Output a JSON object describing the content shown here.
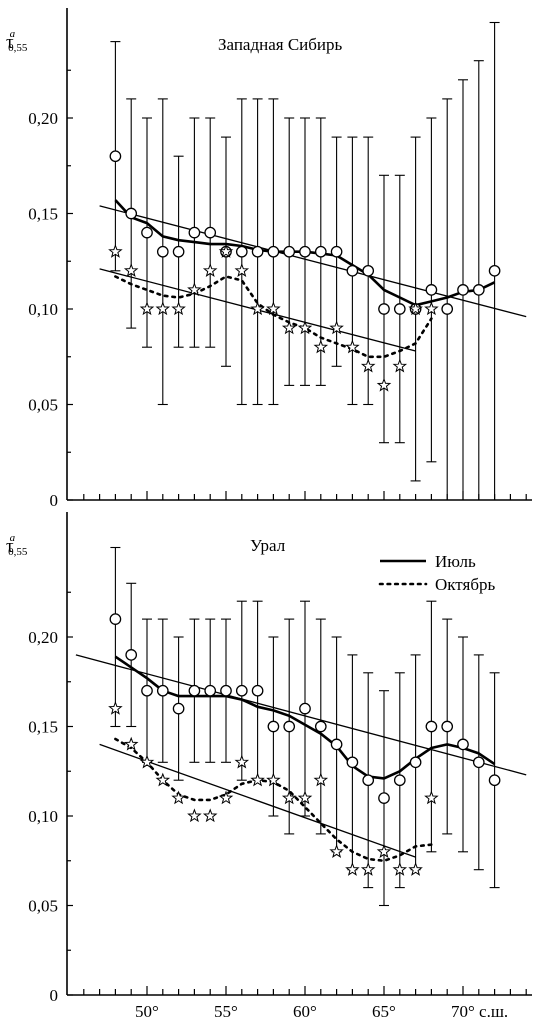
{
  "chart_data": [
    {
      "type": "line",
      "title": "Западная Сибирь",
      "ylabel_base": "τ",
      "ylabel_sup": "a",
      "ylabel_sub": "0,55",
      "ylim": [
        0,
        0.25
      ],
      "yticks": [
        {
          "value": 0,
          "label": "0"
        },
        {
          "value": 0.05,
          "label": "0,05"
        },
        {
          "value": 0.1,
          "label": "0,10"
        },
        {
          "value": 0.15,
          "label": "0,15"
        },
        {
          "value": 0.2,
          "label": "0,20"
        }
      ],
      "xlim": [
        45.5,
        75
      ],
      "series": [
        {
          "name": "Июль",
          "marker": "circle",
          "points": [
            {
              "x": 48,
              "y": 0.18,
              "lo": 0.12,
              "hi": 0.24
            },
            {
              "x": 49,
              "y": 0.15,
              "lo": 0.09,
              "hi": 0.21
            },
            {
              "x": 50,
              "y": 0.14,
              "lo": 0.08,
              "hi": 0.2
            },
            {
              "x": 51,
              "y": 0.13,
              "lo": 0.05,
              "hi": 0.21
            },
            {
              "x": 52,
              "y": 0.13,
              "lo": 0.08,
              "hi": 0.18
            },
            {
              "x": 53,
              "y": 0.14,
              "lo": 0.08,
              "hi": 0.2
            },
            {
              "x": 54,
              "y": 0.14,
              "lo": 0.08,
              "hi": 0.2
            },
            {
              "x": 55,
              "y": 0.13,
              "lo": 0.07,
              "hi": 0.19
            },
            {
              "x": 56,
              "y": 0.13,
              "lo": 0.05,
              "hi": 0.21
            },
            {
              "x": 57,
              "y": 0.13,
              "lo": 0.05,
              "hi": 0.21
            },
            {
              "x": 58,
              "y": 0.13,
              "lo": 0.05,
              "hi": 0.21
            },
            {
              "x": 59,
              "y": 0.13,
              "lo": 0.06,
              "hi": 0.2
            },
            {
              "x": 60,
              "y": 0.13,
              "lo": 0.06,
              "hi": 0.2
            },
            {
              "x": 61,
              "y": 0.13,
              "lo": 0.06,
              "hi": 0.2
            },
            {
              "x": 62,
              "y": 0.13,
              "lo": 0.07,
              "hi": 0.19
            },
            {
              "x": 63,
              "y": 0.12,
              "lo": 0.05,
              "hi": 0.19
            },
            {
              "x": 64,
              "y": 0.12,
              "lo": 0.05,
              "hi": 0.19
            },
            {
              "x": 65,
              "y": 0.1,
              "lo": 0.03,
              "hi": 0.17
            },
            {
              "x": 66,
              "y": 0.1,
              "lo": 0.03,
              "hi": 0.17
            },
            {
              "x": 67,
              "y": 0.1,
              "lo": 0.01,
              "hi": 0.19
            },
            {
              "x": 68,
              "y": 0.11,
              "lo": 0.02,
              "hi": 0.2
            },
            {
              "x": 69,
              "y": 0.1,
              "lo": 0.0,
              "hi": 0.21
            },
            {
              "x": 70,
              "y": 0.11,
              "lo": 0.0,
              "hi": 0.22
            },
            {
              "x": 71,
              "y": 0.11,
              "lo": 0.0,
              "hi": 0.23
            },
            {
              "x": 72,
              "y": 0.12,
              "lo": 0.0,
              "hi": 0.25
            }
          ],
          "smooth": [
            [
              48,
              0.157
            ],
            [
              49,
              0.148
            ],
            [
              50,
              0.145
            ],
            [
              51,
              0.138
            ],
            [
              52,
              0.136
            ],
            [
              53,
              0.135
            ],
            [
              54,
              0.134
            ],
            [
              55,
              0.134
            ],
            [
              56,
              0.133
            ],
            [
              57,
              0.131
            ],
            [
              58,
              0.13
            ],
            [
              59,
              0.13
            ],
            [
              60,
              0.13
            ],
            [
              61,
              0.129
            ],
            [
              62,
              0.128
            ],
            [
              63,
              0.123
            ],
            [
              64,
              0.118
            ],
            [
              65,
              0.11
            ],
            [
              66,
              0.106
            ],
            [
              67,
              0.102
            ],
            [
              68,
              0.104
            ],
            [
              69,
              0.106
            ],
            [
              70,
              0.109
            ],
            [
              71,
              0.11
            ],
            [
              72,
              0.114
            ]
          ],
          "trend": [
            [
              47,
              0.154
            ],
            [
              74,
              0.096
            ]
          ]
        },
        {
          "name": "Октябрь",
          "marker": "star",
          "points": [
            {
              "x": 48,
              "y": 0.13
            },
            {
              "x": 49,
              "y": 0.12
            },
            {
              "x": 50,
              "y": 0.1
            },
            {
              "x": 51,
              "y": 0.1
            },
            {
              "x": 52,
              "y": 0.1
            },
            {
              "x": 53,
              "y": 0.11
            },
            {
              "x": 54,
              "y": 0.12
            },
            {
              "x": 55,
              "y": 0.13
            },
            {
              "x": 56,
              "y": 0.12
            },
            {
              "x": 57,
              "y": 0.1
            },
            {
              "x": 58,
              "y": 0.1
            },
            {
              "x": 59,
              "y": 0.09
            },
            {
              "x": 60,
              "y": 0.09
            },
            {
              "x": 61,
              "y": 0.08
            },
            {
              "x": 62,
              "y": 0.09
            },
            {
              "x": 63,
              "y": 0.08
            },
            {
              "x": 64,
              "y": 0.07
            },
            {
              "x": 65,
              "y": 0.06
            },
            {
              "x": 66,
              "y": 0.07
            },
            {
              "x": 67,
              "y": 0.1
            },
            {
              "x": 68,
              "y": 0.1
            }
          ],
          "smooth": [
            [
              48,
              0.117
            ],
            [
              49,
              0.113
            ],
            [
              50,
              0.11
            ],
            [
              51,
              0.107
            ],
            [
              52,
              0.106
            ],
            [
              53,
              0.108
            ],
            [
              54,
              0.112
            ],
            [
              55,
              0.117
            ],
            [
              56,
              0.115
            ],
            [
              57,
              0.103
            ],
            [
              58,
              0.097
            ],
            [
              59,
              0.093
            ],
            [
              60,
              0.09
            ],
            [
              61,
              0.085
            ],
            [
              62,
              0.082
            ],
            [
              63,
              0.079
            ],
            [
              64,
              0.075
            ],
            [
              65,
              0.075
            ],
            [
              66,
              0.078
            ],
            [
              67,
              0.082
            ],
            [
              68,
              0.095
            ]
          ],
          "trend": [
            [
              47,
              0.121
            ],
            [
              67,
              0.078
            ]
          ]
        }
      ]
    },
    {
      "type": "line",
      "title": "Урал",
      "ylabel_base": "τ",
      "ylabel_sup": "a",
      "ylabel_sub": "0,55",
      "ylim": [
        0,
        0.25
      ],
      "yticks": [
        {
          "value": 0,
          "label": "0"
        },
        {
          "value": 0.05,
          "label": "0,05"
        },
        {
          "value": 0.1,
          "label": "0,10"
        },
        {
          "value": 0.15,
          "label": "0,15"
        },
        {
          "value": 0.2,
          "label": "0,20"
        }
      ],
      "xlim": [
        45.5,
        75
      ],
      "xticks": [
        {
          "value": 50,
          "label": "50°"
        },
        {
          "value": 55,
          "label": "55°"
        },
        {
          "value": 60,
          "label": "60°"
        },
        {
          "value": 65,
          "label": "65°"
        },
        {
          "value": 70,
          "label": "70° с.ш."
        }
      ],
      "legend": {
        "placement": "top-right",
        "entries": [
          "Июль",
          "Октябрь"
        ]
      },
      "series": [
        {
          "name": "Июль",
          "marker": "circle",
          "points": [
            {
              "x": 48,
              "y": 0.21,
              "lo": 0.15,
              "hi": 0.25
            },
            {
              "x": 49,
              "y": 0.19,
              "lo": 0.15,
              "hi": 0.23
            },
            {
              "x": 50,
              "y": 0.17,
              "lo": 0.13,
              "hi": 0.21
            },
            {
              "x": 51,
              "y": 0.17,
              "lo": 0.13,
              "hi": 0.21
            },
            {
              "x": 52,
              "y": 0.16,
              "lo": 0.12,
              "hi": 0.2
            },
            {
              "x": 53,
              "y": 0.17,
              "lo": 0.13,
              "hi": 0.21
            },
            {
              "x": 54,
              "y": 0.17,
              "lo": 0.13,
              "hi": 0.21
            },
            {
              "x": 55,
              "y": 0.17,
              "lo": 0.13,
              "hi": 0.21
            },
            {
              "x": 56,
              "y": 0.17,
              "lo": 0.12,
              "hi": 0.22
            },
            {
              "x": 57,
              "y": 0.17,
              "lo": 0.12,
              "hi": 0.22
            },
            {
              "x": 58,
              "y": 0.15,
              "lo": 0.1,
              "hi": 0.2
            },
            {
              "x": 59,
              "y": 0.15,
              "lo": 0.09,
              "hi": 0.21
            },
            {
              "x": 60,
              "y": 0.16,
              "lo": 0.1,
              "hi": 0.22
            },
            {
              "x": 61,
              "y": 0.15,
              "lo": 0.09,
              "hi": 0.21
            },
            {
              "x": 62,
              "y": 0.14,
              "lo": 0.08,
              "hi": 0.2
            },
            {
              "x": 63,
              "y": 0.13,
              "lo": 0.07,
              "hi": 0.19
            },
            {
              "x": 64,
              "y": 0.12,
              "lo": 0.06,
              "hi": 0.18
            },
            {
              "x": 65,
              "y": 0.11,
              "lo": 0.05,
              "hi": 0.17
            },
            {
              "x": 66,
              "y": 0.12,
              "lo": 0.06,
              "hi": 0.18
            },
            {
              "x": 67,
              "y": 0.13,
              "lo": 0.07,
              "hi": 0.19
            },
            {
              "x": 68,
              "y": 0.15,
              "lo": 0.08,
              "hi": 0.22
            },
            {
              "x": 69,
              "y": 0.15,
              "lo": 0.09,
              "hi": 0.21
            },
            {
              "x": 70,
              "y": 0.14,
              "lo": 0.08,
              "hi": 0.2
            },
            {
              "x": 71,
              "y": 0.13,
              "lo": 0.07,
              "hi": 0.19
            },
            {
              "x": 72,
              "y": 0.12,
              "lo": 0.06,
              "hi": 0.18
            }
          ],
          "smooth": [
            [
              48,
              0.189
            ],
            [
              49,
              0.183
            ],
            [
              50,
              0.177
            ],
            [
              51,
              0.17
            ],
            [
              52,
              0.167
            ],
            [
              53,
              0.167
            ],
            [
              54,
              0.167
            ],
            [
              55,
              0.167
            ],
            [
              56,
              0.165
            ],
            [
              57,
              0.161
            ],
            [
              58,
              0.159
            ],
            [
              59,
              0.156
            ],
            [
              60,
              0.151
            ],
            [
              61,
              0.146
            ],
            [
              62,
              0.139
            ],
            [
              63,
              0.128
            ],
            [
              64,
              0.122
            ],
            [
              65,
              0.121
            ],
            [
              66,
              0.125
            ],
            [
              67,
              0.132
            ],
            [
              68,
              0.138
            ],
            [
              69,
              0.14
            ],
            [
              70,
              0.138
            ],
            [
              71,
              0.135
            ],
            [
              72,
              0.129
            ]
          ],
          "trend": [
            [
              45.5,
              0.19
            ],
            [
              74,
              0.123
            ]
          ]
        },
        {
          "name": "Октябрь",
          "marker": "star",
          "points": [
            {
              "x": 48,
              "y": 0.16
            },
            {
              "x": 49,
              "y": 0.14
            },
            {
              "x": 50,
              "y": 0.13
            },
            {
              "x": 51,
              "y": 0.12
            },
            {
              "x": 52,
              "y": 0.11
            },
            {
              "x": 53,
              "y": 0.1
            },
            {
              "x": 54,
              "y": 0.1
            },
            {
              "x": 55,
              "y": 0.11
            },
            {
              "x": 56,
              "y": 0.13
            },
            {
              "x": 57,
              "y": 0.12
            },
            {
              "x": 58,
              "y": 0.12
            },
            {
              "x": 59,
              "y": 0.11
            },
            {
              "x": 60,
              "y": 0.11
            },
            {
              "x": 61,
              "y": 0.12
            },
            {
              "x": 62,
              "y": 0.08
            },
            {
              "x": 63,
              "y": 0.07
            },
            {
              "x": 64,
              "y": 0.07
            },
            {
              "x": 65,
              "y": 0.08
            },
            {
              "x": 66,
              "y": 0.07
            },
            {
              "x": 67,
              "y": 0.07
            },
            {
              "x": 68,
              "y": 0.11
            }
          ],
          "smooth": [
            [
              48,
              0.143
            ],
            [
              49,
              0.138
            ],
            [
              50,
              0.13
            ],
            [
              51,
              0.12
            ],
            [
              52,
              0.112
            ],
            [
              53,
              0.109
            ],
            [
              54,
              0.109
            ],
            [
              55,
              0.112
            ],
            [
              56,
              0.118
            ],
            [
              57,
              0.12
            ],
            [
              58,
              0.119
            ],
            [
              59,
              0.114
            ],
            [
              60,
              0.105
            ],
            [
              61,
              0.096
            ],
            [
              62,
              0.087
            ],
            [
              63,
              0.08
            ],
            [
              64,
              0.076
            ],
            [
              65,
              0.075
            ],
            [
              66,
              0.078
            ],
            [
              67,
              0.083
            ],
            [
              68,
              0.084
            ]
          ],
          "trend": [
            [
              47,
              0.14
            ],
            [
              67,
              0.077
            ]
          ]
        }
      ]
    }
  ]
}
